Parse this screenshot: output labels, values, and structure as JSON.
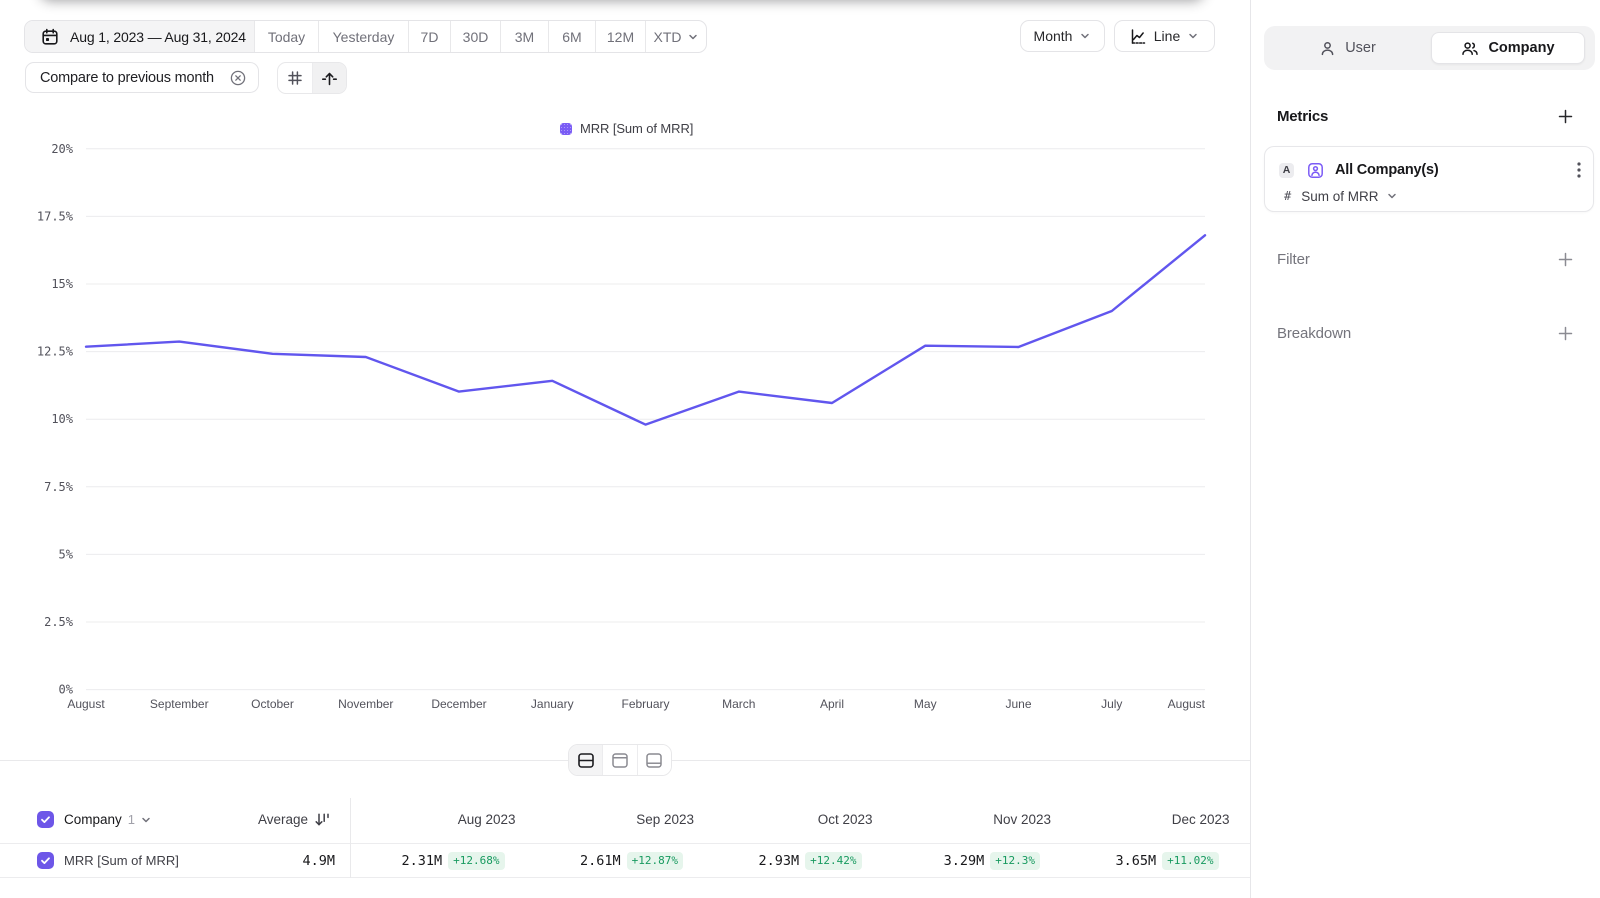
{
  "toolbar": {
    "date_range": "Aug 1, 2023 — Aug 31, 2024",
    "presets": [
      "Today",
      "Yesterday",
      "7D",
      "30D",
      "3M",
      "6M",
      "12M"
    ],
    "xtd_label": "XTD",
    "compare_chip": "Compare to previous month",
    "granularity": "Month",
    "chart_type": "Line"
  },
  "sidebar": {
    "entity_toggle": {
      "user_label": "User",
      "company_label": "Company",
      "active": "Company"
    },
    "metrics_title": "Metrics",
    "metric_card": {
      "badge": "A",
      "name": "All Company(s)",
      "aggregation": "Sum of MRR"
    },
    "filter_label": "Filter",
    "breakdown_label": "Breakdown"
  },
  "chart_data": {
    "type": "line",
    "legend_label": "MRR [Sum of MRR]",
    "x_labels": [
      "August",
      "September",
      "October",
      "November",
      "December",
      "January",
      "February",
      "March",
      "April",
      "May",
      "June",
      "July",
      "August"
    ],
    "series": [
      {
        "name": "MRR [Sum of MRR]",
        "values": [
          12.68,
          12.87,
          12.42,
          12.3,
          11.02,
          11.42,
          9.8,
          11.02,
          10.6,
          12.72,
          12.67,
          14.0,
          16.8
        ]
      }
    ],
    "ylim": [
      0,
      20
    ],
    "y_ticks": [
      "20%",
      "17.5%",
      "15%",
      "12.5%",
      "10%",
      "7.5%",
      "5%",
      "2.5%",
      "0%"
    ],
    "grid": true,
    "legend_position": "top",
    "line_color": "#6156ee"
  },
  "table": {
    "entity_label": "Company",
    "entity_count": "1",
    "average_label": "Average",
    "columns": [
      "Aug 2023",
      "Sep 2023",
      "Oct 2023",
      "Nov 2023",
      "Dec 2023"
    ],
    "rows": [
      {
        "name": "MRR [Sum of MRR]",
        "average": "4.9M",
        "values": [
          "2.31M",
          "2.61M",
          "2.93M",
          "3.29M",
          "3.65M"
        ],
        "changes": [
          "+12.68%",
          "+12.87%",
          "+12.42%",
          "+12.3%",
          "+11.02%"
        ]
      }
    ]
  },
  "colors": {
    "line": "#6156ee",
    "legend_swatch": "#7a5cf5",
    "checkbox": "#6d56e8",
    "entity_icon": "#7c5cf6",
    "badge_text": "#179a5f",
    "badge_bg": "#e6f5ec"
  }
}
